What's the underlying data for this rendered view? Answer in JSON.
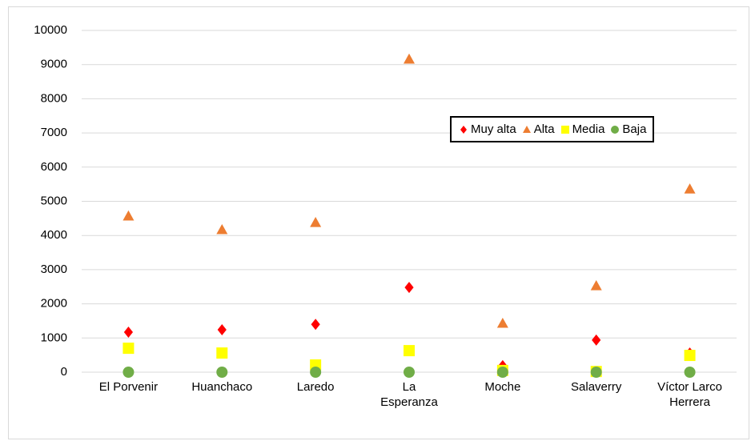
{
  "chart_data": {
    "type": "scatter",
    "categories": [
      "El Porvenir",
      "Huanchaco",
      "Laredo",
      "La Esperanza",
      "Moche",
      "Salaverry",
      "Víctor Larco Herrera"
    ],
    "series": [
      {
        "name": "Muy alta",
        "color": "#ff0000",
        "marker": "diamond",
        "values": [
          1170,
          1240,
          1400,
          2480,
          190,
          940,
          560
        ]
      },
      {
        "name": "Alta",
        "color": "#ed7d31",
        "marker": "triangle",
        "values": [
          4570,
          4170,
          4380,
          9160,
          1430,
          2530,
          5360
        ]
      },
      {
        "name": "Media",
        "color": "#ffff00",
        "marker": "square",
        "values": [
          700,
          560,
          210,
          630,
          50,
          20,
          490
        ]
      },
      {
        "name": "Baja",
        "color": "#70ad47",
        "marker": "circle",
        "values": [
          0,
          0,
          0,
          0,
          0,
          0,
          0
        ]
      }
    ],
    "ylim": [
      0,
      10000
    ],
    "yticks": [
      0,
      1000,
      2000,
      3000,
      4000,
      5000,
      6000,
      7000,
      8000,
      9000,
      10000
    ],
    "grid": true,
    "legend": "upper right"
  }
}
